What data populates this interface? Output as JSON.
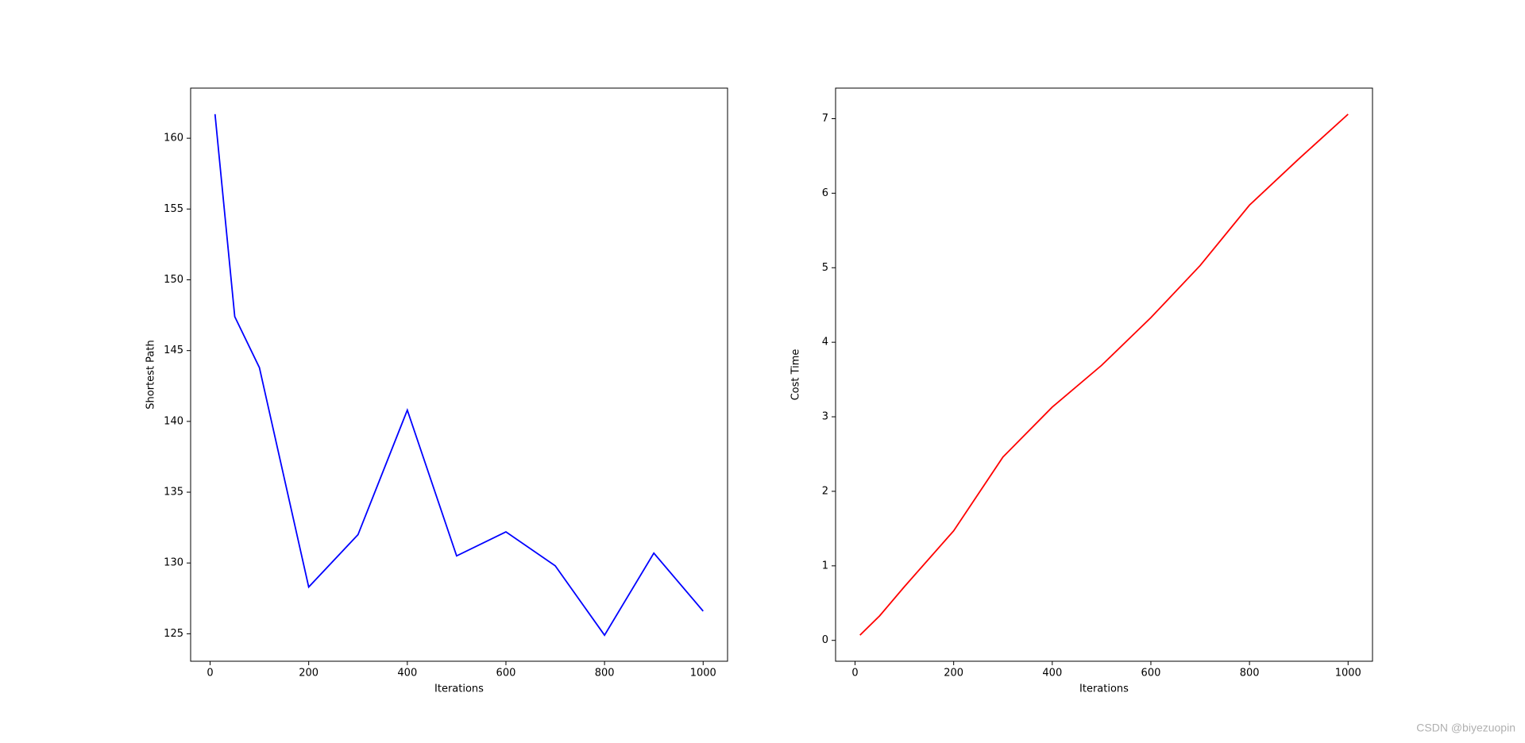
{
  "chart_data": [
    {
      "type": "line",
      "xlabel": "Iterations",
      "ylabel": "Shortest Path",
      "color": "#0000ff",
      "x": [
        10,
        50,
        100,
        200,
        300,
        400,
        500,
        600,
        700,
        800,
        900,
        1000
      ],
      "values": [
        161.7,
        147.4,
        143.8,
        128.3,
        132.0,
        140.8,
        130.5,
        132.2,
        129.8,
        124.9,
        130.7,
        126.6
      ],
      "xlim": [
        -39.5,
        1049.5
      ],
      "xticks": [
        0,
        200,
        400,
        600,
        800,
        1000
      ],
      "ylim": [
        123.06,
        163.54
      ],
      "yticks": [
        125,
        130,
        135,
        140,
        145,
        150,
        155,
        160
      ]
    },
    {
      "type": "line",
      "xlabel": "Iterations",
      "ylabel": "Cost Time",
      "color": "#ff0000",
      "x": [
        10,
        50,
        100,
        200,
        300,
        400,
        500,
        600,
        700,
        800,
        900,
        1000
      ],
      "values": [
        0.07,
        0.33,
        0.72,
        1.47,
        2.46,
        3.13,
        3.69,
        4.33,
        5.03,
        5.84,
        6.46,
        7.06
      ],
      "xlim": [
        -39.5,
        1049.5
      ],
      "xticks": [
        0,
        200,
        400,
        600,
        800,
        1000
      ],
      "ylim": [
        -0.28,
        7.41
      ],
      "yticks": [
        0,
        1,
        2,
        3,
        4,
        5,
        6,
        7
      ]
    }
  ],
  "watermark": "CSDN @biyezuopin"
}
